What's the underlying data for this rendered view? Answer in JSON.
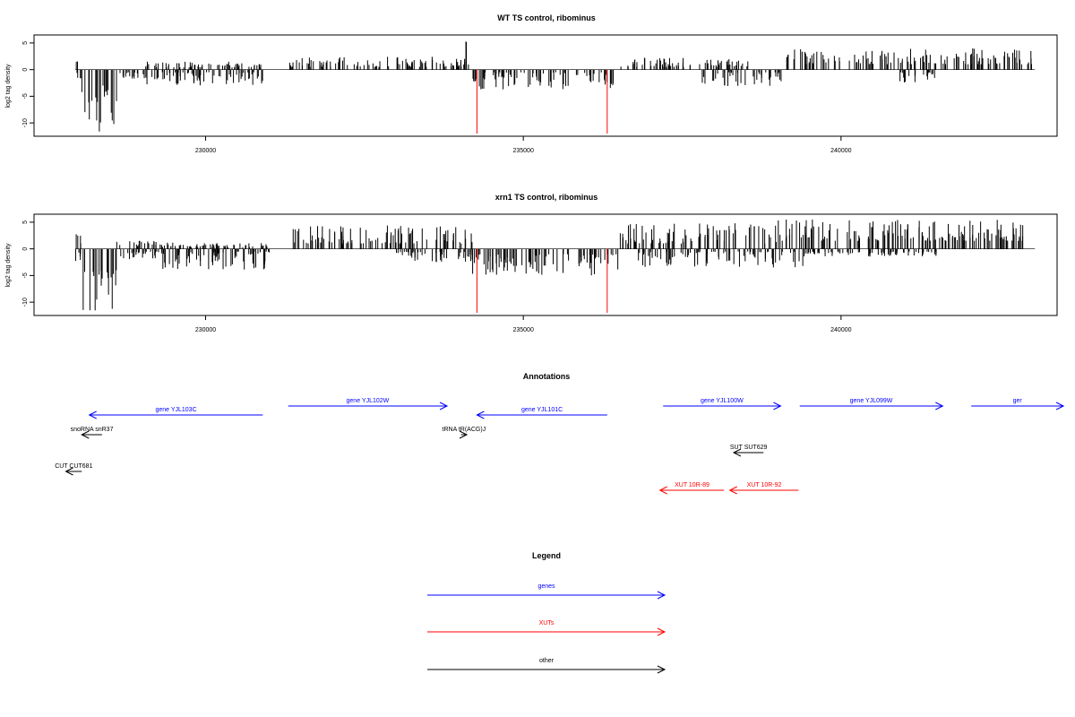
{
  "chart_data": [
    {
      "type": "bar",
      "title": "WT TS control, ribominus",
      "xlabel": "",
      "ylabel": "log2 tag density",
      "xlim": [
        227300,
        243400
      ],
      "ylim": [
        -12.5,
        6.5
      ],
      "x_ticks": [
        230000,
        235000,
        240000
      ],
      "x_tick_labels": [
        "230000",
        "235000",
        "240000"
      ],
      "y_ticks": [
        5,
        0,
        -5,
        -10
      ],
      "y_tick_labels": [
        "5",
        "0",
        "-5",
        "-10"
      ],
      "grid": false,
      "reference_lines": [
        {
          "x": 234270,
          "y_from": 0,
          "y_to": -12,
          "color": "#ff0000"
        },
        {
          "x": 236320,
          "y_from": 0,
          "y_to": -12,
          "color": "#ff0000"
        }
      ],
      "series": [
        {
          "values_color": "#000000",
          "regions": [
            {
              "x_from": 227950,
              "x_to": 228000,
              "y_min": 1.2,
              "y_max": 1.8,
              "strand": "+"
            },
            {
              "x_from": 227950,
              "x_to": 228060,
              "y_min": -0.5,
              "y_max": -2.0,
              "strand": "-"
            },
            {
              "x_from": 228050,
              "x_to": 228600,
              "y_min": -3.0,
              "y_max": -12.0,
              "strand": "-"
            },
            {
              "x_from": 228620,
              "x_to": 229000,
              "y_min": -0.5,
              "y_max": -2.0,
              "strand": "-"
            },
            {
              "x_from": 229000,
              "x_to": 230900,
              "y_min": 0.4,
              "y_max": 1.5,
              "strand": "+"
            },
            {
              "x_from": 229000,
              "x_to": 230900,
              "y_min": -0.5,
              "y_max": -3.0,
              "strand": "-"
            },
            {
              "x_from": 231300,
              "x_to": 234200,
              "y_min": 0.5,
              "y_max": 2.5,
              "strand": "+"
            },
            {
              "x_from": 234080,
              "x_to": 234120,
              "y_min": 5.0,
              "y_max": 5.5,
              "strand": "+"
            },
            {
              "x_from": 234200,
              "x_to": 236500,
              "y_min": -0.5,
              "y_max": -4.0,
              "strand": "-"
            },
            {
              "x_from": 236500,
              "x_to": 238600,
              "y_min": 0.5,
              "y_max": 2.2,
              "strand": "+"
            },
            {
              "x_from": 237800,
              "x_to": 239100,
              "y_min": -0.5,
              "y_max": -3.2,
              "strand": "-"
            },
            {
              "x_from": 239100,
              "x_to": 243000,
              "y_min": 1.0,
              "y_max": 4.0,
              "strand": "+"
            },
            {
              "x_from": 240900,
              "x_to": 241500,
              "y_min": -0.5,
              "y_max": -2.5,
              "strand": "-"
            }
          ]
        }
      ]
    },
    {
      "type": "bar",
      "title": "xrn1 TS control, ribominus",
      "xlabel": "",
      "ylabel": "log2 tag density",
      "xlim": [
        227300,
        243400
      ],
      "ylim": [
        -12.5,
        6.5
      ],
      "x_ticks": [
        230000,
        235000,
        240000
      ],
      "x_tick_labels": [
        "230000",
        "235000",
        "240000"
      ],
      "y_ticks": [
        5,
        0,
        -5,
        -10
      ],
      "y_tick_labels": [
        "5",
        "0",
        "-5",
        "-10"
      ],
      "grid": false,
      "reference_lines": [
        {
          "x": 234270,
          "y_from": 0,
          "y_to": -12,
          "color": "#ff0000"
        },
        {
          "x": 236320,
          "y_from": 0,
          "y_to": -12,
          "color": "#ff0000"
        }
      ],
      "series": [
        {
          "values_color": "#000000",
          "regions": [
            {
              "x_from": 227950,
              "x_to": 228060,
              "y_min": 1.0,
              "y_max": 2.8,
              "strand": "+"
            },
            {
              "x_from": 227950,
              "x_to": 228060,
              "y_min": -0.5,
              "y_max": -2.5,
              "strand": "-"
            },
            {
              "x_from": 228050,
              "x_to": 228600,
              "y_min": -4.0,
              "y_max": -12.0,
              "strand": "-"
            },
            {
              "x_from": 228600,
              "x_to": 229300,
              "y_min": 0.5,
              "y_max": 1.5,
              "strand": "+"
            },
            {
              "x_from": 228600,
              "x_to": 229300,
              "y_min": -0.5,
              "y_max": -2.0,
              "strand": "-"
            },
            {
              "x_from": 229300,
              "x_to": 231000,
              "y_min": -0.5,
              "y_max": -4.0,
              "strand": "-"
            },
            {
              "x_from": 229300,
              "x_to": 231000,
              "y_min": 0.3,
              "y_max": 1.2,
              "strand": "+"
            },
            {
              "x_from": 231300,
              "x_to": 234200,
              "y_min": 1.0,
              "y_max": 4.5,
              "strand": "+"
            },
            {
              "x_from": 233000,
              "x_to": 234200,
              "y_min": -0.5,
              "y_max": -2.5,
              "strand": "-"
            },
            {
              "x_from": 234200,
              "x_to": 236500,
              "y_min": -1.0,
              "y_max": -5.0,
              "strand": "-"
            },
            {
              "x_from": 236500,
              "x_to": 239000,
              "y_min": 1.0,
              "y_max": 4.8,
              "strand": "+"
            },
            {
              "x_from": 236800,
              "x_to": 239400,
              "y_min": -0.5,
              "y_max": -3.5,
              "strand": "-"
            },
            {
              "x_from": 239000,
              "x_to": 243000,
              "y_min": 1.5,
              "y_max": 5.5,
              "strand": "+"
            },
            {
              "x_from": 239400,
              "x_to": 241500,
              "y_min": -0.5,
              "y_max": -1.5,
              "strand": "-"
            }
          ]
        }
      ]
    }
  ],
  "annotations": {
    "title": "Annotations",
    "features": [
      {
        "label": "gene YJL103C",
        "start": 228170,
        "end": 230900,
        "strand": "-",
        "color": "#0000ff",
        "row": 2
      },
      {
        "label": "gene YJL102W",
        "start": 231300,
        "end": 233800,
        "strand": "+",
        "color": "#0000ff",
        "row": 1
      },
      {
        "label": "gene YJL101C",
        "start": 234270,
        "end": 236320,
        "strand": "-",
        "color": "#0000ff",
        "row": 2
      },
      {
        "label": "gene YJL100W",
        "start": 237200,
        "end": 239050,
        "strand": "+",
        "color": "#0000ff",
        "row": 1
      },
      {
        "label": "gene YJL099W",
        "start": 239350,
        "end": 241600,
        "strand": "+",
        "color": "#0000ff",
        "row": 1
      },
      {
        "label": "ger",
        "start": 242050,
        "end": 243500,
        "strand": "+",
        "color": "#0000ff",
        "row": 1
      },
      {
        "label": "snoRNA snR37",
        "start": 228050,
        "end": 228370,
        "strand": "-",
        "color": "#000000",
        "row": 3
      },
      {
        "label": "tRNA tR(ACG)J",
        "start": 234020,
        "end": 234110,
        "strand": "+",
        "color": "#000000",
        "row": 3
      },
      {
        "label": "SUT SUT629",
        "start": 238310,
        "end": 238780,
        "strand": "-",
        "color": "#000000",
        "row": 4
      },
      {
        "label": "CUT CUT681",
        "start": 227800,
        "end": 228050,
        "strand": "-",
        "color": "#000000",
        "row": 5
      },
      {
        "label": "XUT 10R-89",
        "start": 237150,
        "end": 238160,
        "strand": "-",
        "color": "#ff0000",
        "row": 6
      },
      {
        "label": "XUT 10R-92",
        "start": 238250,
        "end": 239330,
        "strand": "-",
        "color": "#ff0000",
        "row": 6
      }
    ]
  },
  "legend": {
    "title": "Legend",
    "items": [
      {
        "label": "genes",
        "color": "#0000ff"
      },
      {
        "label": "XUTs",
        "color": "#ff0000"
      },
      {
        "label": "other",
        "color": "#000000"
      }
    ]
  }
}
